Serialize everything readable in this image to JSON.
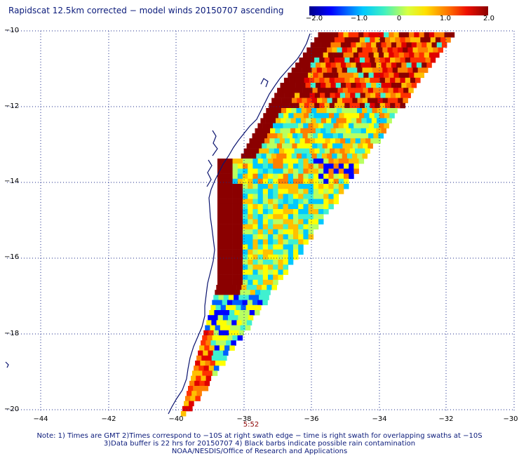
{
  "title": "Rapidscat 12.5km corrected − model winds 20150707 ascending",
  "colorbar": {
    "ticks": [
      "−2.0",
      "−1.0",
      "0",
      "1.0",
      "2.0"
    ],
    "range": [
      -2.0,
      2.0
    ]
  },
  "y_axis_labels": [
    "−10",
    "−12",
    "−14",
    "−16",
    "−18",
    "−20"
  ],
  "x_axis_labels": [
    "−44",
    "−42",
    "−40",
    "−38",
    "−36",
    "−34",
    "−32",
    "−30"
  ],
  "time_label": "5:52",
  "notes": [
    "Note: 1) Times are GMT 2)Times correspond to −10S at right swath edge − time is right swath for overlapping swaths at −10S",
    "3)Data buffer is 22 hrs for 20150707 4) Black barbs indicate possible rain contamination",
    "NOAA/NESDIS/Office of Research and Applications"
  ],
  "map": {
    "lon_range": [
      -45,
      -30
    ],
    "lat_range": [
      -20,
      -10
    ],
    "grid": true,
    "colors": {
      "coastline": "#0b1470",
      "grid": "#1a2a8a"
    }
  }
}
